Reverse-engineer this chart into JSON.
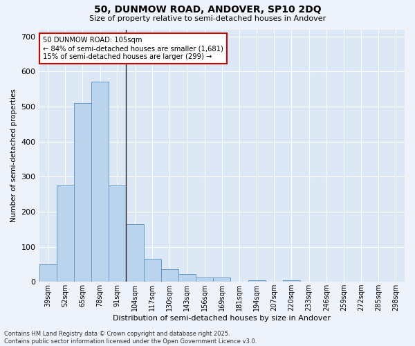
{
  "title_line1": "50, DUNMOW ROAD, ANDOVER, SP10 2DQ",
  "title_line2": "Size of property relative to semi-detached houses in Andover",
  "xlabel": "Distribution of semi-detached houses by size in Andover",
  "ylabel": "Number of semi-detached properties",
  "categories": [
    "39sqm",
    "52sqm",
    "65sqm",
    "78sqm",
    "91sqm",
    "104sqm",
    "117sqm",
    "130sqm",
    "143sqm",
    "156sqm",
    "169sqm",
    "181sqm",
    "194sqm",
    "207sqm",
    "220sqm",
    "233sqm",
    "246sqm",
    "259sqm",
    "272sqm",
    "285sqm",
    "298sqm"
  ],
  "values": [
    50,
    275,
    510,
    570,
    275,
    165,
    65,
    35,
    22,
    12,
    12,
    0,
    5,
    0,
    5,
    0,
    0,
    0,
    0,
    0,
    0
  ],
  "bar_color": "#bad4ed",
  "bar_edge_color": "#6699cc",
  "vline_index": 5,
  "vline_color": "#222222",
  "annotation_title": "50 DUNMOW ROAD: 105sqm",
  "annotation_line1": "← 84% of semi-detached houses are smaller (1,681)",
  "annotation_line2": "15% of semi-detached houses are larger (299) →",
  "annotation_box_color": "#ffffff",
  "annotation_box_edge": "#cc0000",
  "ylim": [
    0,
    720
  ],
  "yticks": [
    0,
    100,
    200,
    300,
    400,
    500,
    600,
    700
  ],
  "fig_bg_color": "#eef2fb",
  "ax_bg_color": "#dce8f5",
  "grid_color": "#ffffff",
  "footer_line1": "Contains HM Land Registry data © Crown copyright and database right 2025.",
  "footer_line2": "Contains public sector information licensed under the Open Government Licence v3.0."
}
